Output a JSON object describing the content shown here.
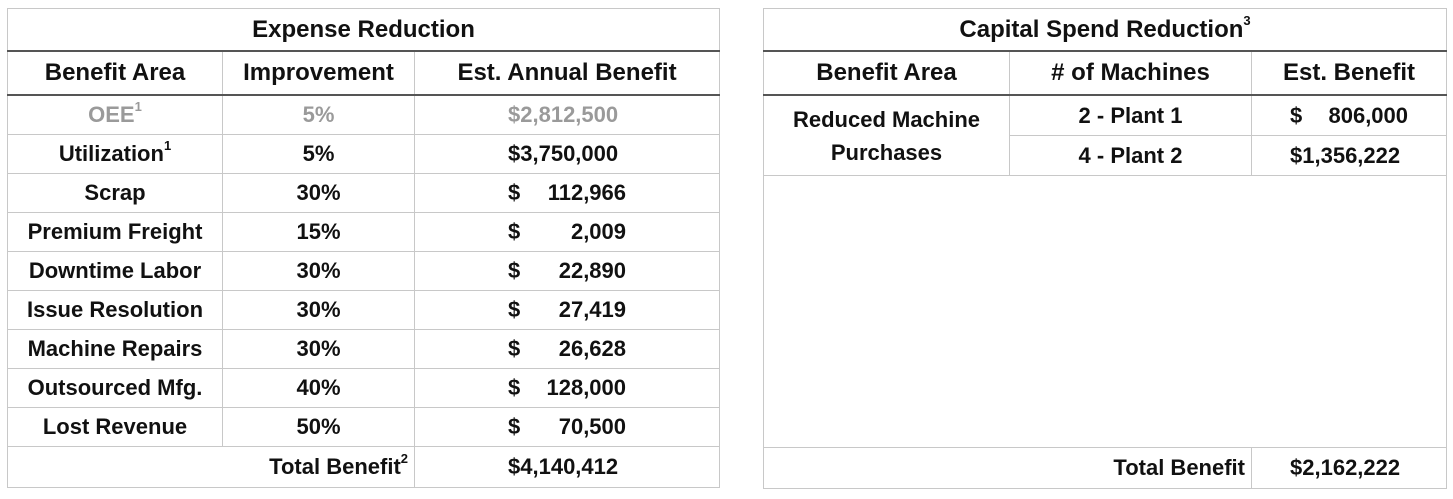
{
  "expense": {
    "title": "Expense Reduction",
    "headers": {
      "area": "Benefit Area",
      "improvement": "Improvement",
      "benefit": "Est. Annual Benefit"
    },
    "rows": [
      {
        "area": "OEE",
        "sup": "1",
        "improvement": "5%",
        "sym": "",
        "amount": "$2,812,500",
        "muted": true
      },
      {
        "area": "Utilization",
        "sup": "1",
        "improvement": "5%",
        "sym": "",
        "amount": "$3,750,000",
        "muted": false
      },
      {
        "area": "Scrap",
        "sup": "",
        "improvement": "30%",
        "sym": "$",
        "amount": "112,966",
        "muted": false
      },
      {
        "area": "Premium Freight",
        "sup": "",
        "improvement": "15%",
        "sym": "$",
        "amount": "2,009",
        "muted": false
      },
      {
        "area": "Downtime Labor",
        "sup": "",
        "improvement": "30%",
        "sym": "$",
        "amount": "22,890",
        "muted": false
      },
      {
        "area": "Issue Resolution",
        "sup": "",
        "improvement": "30%",
        "sym": "$",
        "amount": "27,419",
        "muted": false
      },
      {
        "area": "Machine Repairs",
        "sup": "",
        "improvement": "30%",
        "sym": "$",
        "amount": "26,628",
        "muted": false
      },
      {
        "area": "Outsourced Mfg.",
        "sup": "",
        "improvement": "40%",
        "sym": "$",
        "amount": "128,000",
        "muted": false
      },
      {
        "area": "Lost Revenue",
        "sup": "",
        "improvement": "50%",
        "sym": "$",
        "amount": "70,500",
        "muted": false
      }
    ],
    "total_label": "Total Benefit",
    "total_sup": "2",
    "total_value": "$4,140,412"
  },
  "capital": {
    "title": "Capital Spend Reduction",
    "title_sup": "3",
    "headers": {
      "area": "Benefit Area",
      "machines": "# of Machines",
      "benefit": "Est. Benefit"
    },
    "area_line1": "Reduced Machine",
    "area_line2": "Purchases",
    "rows": [
      {
        "machines": "2 - Plant 1",
        "sym": "$",
        "amount": "806,000"
      },
      {
        "machines": "4 - Plant 2",
        "sym": "",
        "amount": "$1,356,222"
      }
    ],
    "total_label": "Total Benefit",
    "total_value": "$2,162,222"
  }
}
